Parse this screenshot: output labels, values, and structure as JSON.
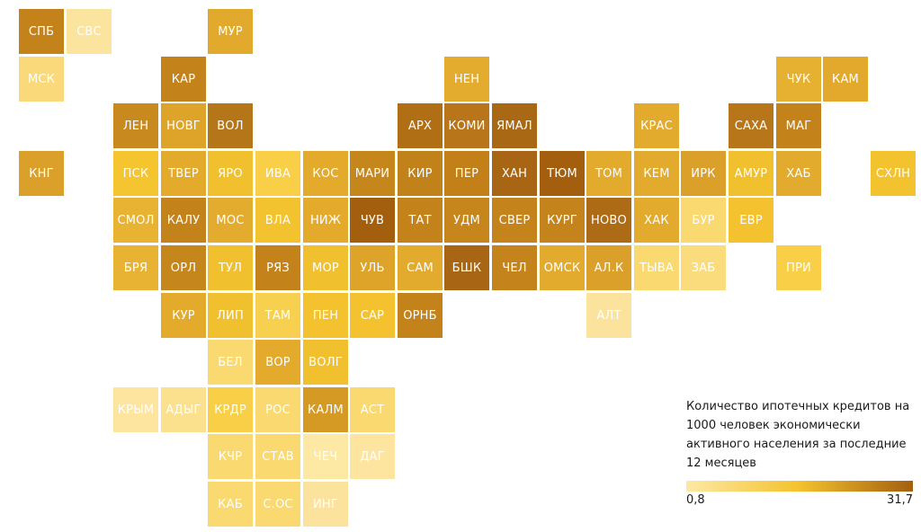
{
  "legend": {
    "title": "Количество ипотечных кредитов на 1000 человек экономически активного населения за последние 12 месяцев",
    "min_label": "0,8",
    "max_label": "31,7",
    "gradient_colors": [
      "#fde9a4",
      "#f3c22d",
      "#a35f0e"
    ]
  },
  "regions": [
    {
      "label": "СПБ",
      "row": 0,
      "col": 0,
      "color": "#c3821a"
    },
    {
      "label": "СВС",
      "row": 0,
      "col": 1,
      "color": "#fbe49e"
    },
    {
      "label": "МУР",
      "row": 0,
      "col": 4,
      "color": "#e2aa2c"
    },
    {
      "label": "МСК",
      "row": 1,
      "col": 0,
      "color": "#fad97a"
    },
    {
      "label": "КАР",
      "row": 1,
      "col": 3,
      "color": "#c3821a"
    },
    {
      "label": "НЕН",
      "row": 1,
      "col": 9,
      "color": "#e4ac2e"
    },
    {
      "label": "ЧУК",
      "row": 1,
      "col": 16,
      "color": "#e6b030"
    },
    {
      "label": "КАМ",
      "row": 1,
      "col": 17,
      "color": "#e2a92c"
    },
    {
      "label": "ЛЕН",
      "row": 2,
      "col": 2,
      "color": "#c88a1e"
    },
    {
      "label": "НОВГ",
      "row": 2,
      "col": 3,
      "color": "#dea42a"
    },
    {
      "label": "ВОЛ",
      "row": 2,
      "col": 4,
      "color": "#b5761a"
    },
    {
      "label": "АРХ",
      "row": 2,
      "col": 8,
      "color": "#b06f14"
    },
    {
      "label": "КОМИ",
      "row": 2,
      "col": 9,
      "color": "#b8751a"
    },
    {
      "label": "ЯМАЛ",
      "row": 2,
      "col": 10,
      "color": "#a96814"
    },
    {
      "label": "КРАС",
      "row": 2,
      "col": 13,
      "color": "#e3ab2d"
    },
    {
      "label": "САХА",
      "row": 2,
      "col": 15,
      "color": "#b7761a"
    },
    {
      "label": "МАГ",
      "row": 2,
      "col": 16,
      "color": "#c3821a"
    },
    {
      "label": "КНГ",
      "row": 3,
      "col": 0,
      "color": "#dba02a"
    },
    {
      "label": "ПСК",
      "row": 3,
      "col": 2,
      "color": "#f4c52f"
    },
    {
      "label": "ТВЕР",
      "row": 3,
      "col": 3,
      "color": "#e3aa2c"
    },
    {
      "label": "ЯРО",
      "row": 3,
      "col": 4,
      "color": "#f1c02e"
    },
    {
      "label": "ИВА",
      "row": 3,
      "col": 5,
      "color": "#f8cf47"
    },
    {
      "label": "КОС",
      "row": 3,
      "col": 6,
      "color": "#e3aa2c"
    },
    {
      "label": "МАРИ",
      "row": 3,
      "col": 7,
      "color": "#c5861c"
    },
    {
      "label": "КИР",
      "row": 3,
      "col": 8,
      "color": "#c2821a"
    },
    {
      "label": "ПЕР",
      "row": 3,
      "col": 9,
      "color": "#c38019"
    },
    {
      "label": "ХАН",
      "row": 3,
      "col": 10,
      "color": "#a86614"
    },
    {
      "label": "ТЮМ",
      "row": 3,
      "col": 11,
      "color": "#a35f0e"
    },
    {
      "label": "ТОМ",
      "row": 3,
      "col": 12,
      "color": "#e3ab2d"
    },
    {
      "label": "КЕМ",
      "row": 3,
      "col": 13,
      "color": "#e3ab2d"
    },
    {
      "label": "ИРК",
      "row": 3,
      "col": 14,
      "color": "#dba02a"
    },
    {
      "label": "АМУР",
      "row": 3,
      "col": 15,
      "color": "#f1c02e"
    },
    {
      "label": "ХАБ",
      "row": 3,
      "col": 16,
      "color": "#e3ab2d"
    },
    {
      "label": "СХЛН",
      "row": 3,
      "col": 18,
      "color": "#f3c22f"
    },
    {
      "label": "СМОЛ",
      "row": 4,
      "col": 2,
      "color": "#e8b232"
    },
    {
      "label": "КАЛУ",
      "row": 4,
      "col": 3,
      "color": "#c3821a"
    },
    {
      "label": "МОС",
      "row": 4,
      "col": 4,
      "color": "#e4ac2e"
    },
    {
      "label": "ВЛА",
      "row": 4,
      "col": 5,
      "color": "#f2c22f"
    },
    {
      "label": "НИЖ",
      "row": 4,
      "col": 6,
      "color": "#e3aa2c"
    },
    {
      "label": "ЧУВ",
      "row": 4,
      "col": 7,
      "color": "#a35f0e"
    },
    {
      "label": "ТАТ",
      "row": 4,
      "col": 8,
      "color": "#c3821a"
    },
    {
      "label": "УДМ",
      "row": 4,
      "col": 9,
      "color": "#c6861c"
    },
    {
      "label": "СВЕР",
      "row": 4,
      "col": 10,
      "color": "#c4841b"
    },
    {
      "label": "КУРГ",
      "row": 4,
      "col": 11,
      "color": "#c4841b"
    },
    {
      "label": "НОВО",
      "row": 4,
      "col": 12,
      "color": "#ad6b15"
    },
    {
      "label": "ХАК",
      "row": 4,
      "col": 13,
      "color": "#e3ab2d"
    },
    {
      "label": "БУР",
      "row": 4,
      "col": 14,
      "color": "#fad970"
    },
    {
      "label": "ЕВР",
      "row": 4,
      "col": 15,
      "color": "#f3c22e"
    },
    {
      "label": "БРЯ",
      "row": 5,
      "col": 2,
      "color": "#e8b232"
    },
    {
      "label": "ОРЛ",
      "row": 5,
      "col": 3,
      "color": "#c5861c"
    },
    {
      "label": "ТУЛ",
      "row": 5,
      "col": 4,
      "color": "#f1c02e"
    },
    {
      "label": "РЯЗ",
      "row": 5,
      "col": 5,
      "color": "#c3821a"
    },
    {
      "label": "МОР",
      "row": 5,
      "col": 6,
      "color": "#f1c02e"
    },
    {
      "label": "УЛЬ",
      "row": 5,
      "col": 7,
      "color": "#dea42a"
    },
    {
      "label": "САМ",
      "row": 5,
      "col": 8,
      "color": "#e3ab2d"
    },
    {
      "label": "БШК",
      "row": 5,
      "col": 9,
      "color": "#a86614"
    },
    {
      "label": "ЧЕЛ",
      "row": 5,
      "col": 10,
      "color": "#c4841b"
    },
    {
      "label": "ОМСК",
      "row": 5,
      "col": 11,
      "color": "#e3ab2d"
    },
    {
      "label": "АЛ.К",
      "row": 5,
      "col": 12,
      "color": "#dba02a"
    },
    {
      "label": "ТЫВА",
      "row": 5,
      "col": 13,
      "color": "#fad970"
    },
    {
      "label": "ЗАБ",
      "row": 5,
      "col": 14,
      "color": "#fbdc7c"
    },
    {
      "label": "ПРИ",
      "row": 5,
      "col": 16,
      "color": "#f8cf47"
    },
    {
      "label": "КУР",
      "row": 6,
      "col": 3,
      "color": "#e3aa2c"
    },
    {
      "label": "ЛИП",
      "row": 6,
      "col": 4,
      "color": "#f1c02e"
    },
    {
      "label": "ТАМ",
      "row": 6,
      "col": 5,
      "color": "#f8d04f"
    },
    {
      "label": "ПЕН",
      "row": 6,
      "col": 6,
      "color": "#f3c22e"
    },
    {
      "label": "САР",
      "row": 6,
      "col": 7,
      "color": "#f3c22e"
    },
    {
      "label": "ОРНБ",
      "row": 6,
      "col": 8,
      "color": "#c3821a"
    },
    {
      "label": "АЛТ",
      "row": 6,
      "col": 12,
      "color": "#fce39d"
    },
    {
      "label": "БЕЛ",
      "row": 7,
      "col": 4,
      "color": "#fad970"
    },
    {
      "label": "ВОР",
      "row": 7,
      "col": 5,
      "color": "#e3aa2c"
    },
    {
      "label": "ВОЛГ",
      "row": 7,
      "col": 6,
      "color": "#f1c02e"
    },
    {
      "label": "КРЫМ",
      "row": 8,
      "col": 2,
      "color": "#fde5a0"
    },
    {
      "label": "АДЫГ",
      "row": 8,
      "col": 3,
      "color": "#fbe08e"
    },
    {
      "label": "КРДР",
      "row": 8,
      "col": 4,
      "color": "#f8cf47"
    },
    {
      "label": "РОС",
      "row": 8,
      "col": 5,
      "color": "#fad970"
    },
    {
      "label": "КАЛМ",
      "row": 8,
      "col": 6,
      "color": "#d49a24"
    },
    {
      "label": "АСТ",
      "row": 8,
      "col": 7,
      "color": "#fad970"
    },
    {
      "label": "КЧР",
      "row": 9,
      "col": 4,
      "color": "#fad970"
    },
    {
      "label": "СТАВ",
      "row": 9,
      "col": 5,
      "color": "#fad970"
    },
    {
      "label": "ЧЕЧ",
      "row": 9,
      "col": 6,
      "color": "#fde9a4"
    },
    {
      "label": "ДАГ",
      "row": 9,
      "col": 7,
      "color": "#fde5a0"
    },
    {
      "label": "КАБ",
      "row": 10,
      "col": 4,
      "color": "#fad970"
    },
    {
      "label": "С.ОС",
      "row": 10,
      "col": 5,
      "color": "#fad970"
    },
    {
      "label": "ИНГ",
      "row": 10,
      "col": 6,
      "color": "#fce39d"
    }
  ]
}
